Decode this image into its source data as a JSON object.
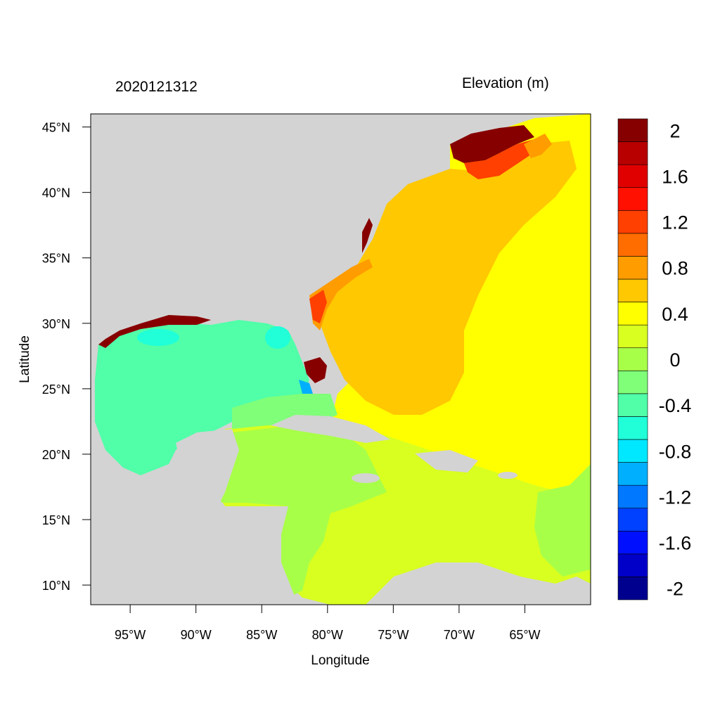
{
  "map": {
    "date_label": "2020121312",
    "variable_label": "Elevation (m)",
    "x_axis_title": "Longitude",
    "y_axis_title": "Latitude",
    "lon_range": [
      -98,
      -60
    ],
    "lat_range": [
      8.5,
      46
    ],
    "lon_ticks": [
      {
        "value": -95,
        "label": "95°W"
      },
      {
        "value": -90,
        "label": "90°W"
      },
      {
        "value": -85,
        "label": "85°W"
      },
      {
        "value": -80,
        "label": "80°W"
      },
      {
        "value": -75,
        "label": "75°W"
      },
      {
        "value": -70,
        "label": "70°W"
      },
      {
        "value": -65,
        "label": "65°W"
      }
    ],
    "lat_ticks": [
      {
        "value": 45,
        "label": "45°N"
      },
      {
        "value": 40,
        "label": "40°N"
      },
      {
        "value": 35,
        "label": "35°N"
      },
      {
        "value": 30,
        "label": "30°N"
      },
      {
        "value": 25,
        "label": "25°N"
      },
      {
        "value": 20,
        "label": "20°N"
      },
      {
        "value": 15,
        "label": "15°N"
      },
      {
        "value": 10,
        "label": "10°N"
      }
    ],
    "land_color": "#d3d3d3"
  },
  "colorbar": {
    "colors": [
      "#00008f",
      "#0000c8",
      "#0010ff",
      "#0040ff",
      "#0078ff",
      "#00b0ff",
      "#00e8ff",
      "#20ffd8",
      "#50ffa8",
      "#80ff78",
      "#a8ff48",
      "#d8ff20",
      "#ffff00",
      "#ffc800",
      "#ff9c00",
      "#ff6c00",
      "#ff4000",
      "#ff1000",
      "#e00000",
      "#b80000",
      "#870000"
    ],
    "labels": [
      "-2",
      "-1.6",
      "-1.2",
      "-0.8",
      "-0.4",
      "0",
      "0.4",
      "0.8",
      "1.2",
      "1.6",
      "2"
    ]
  }
}
